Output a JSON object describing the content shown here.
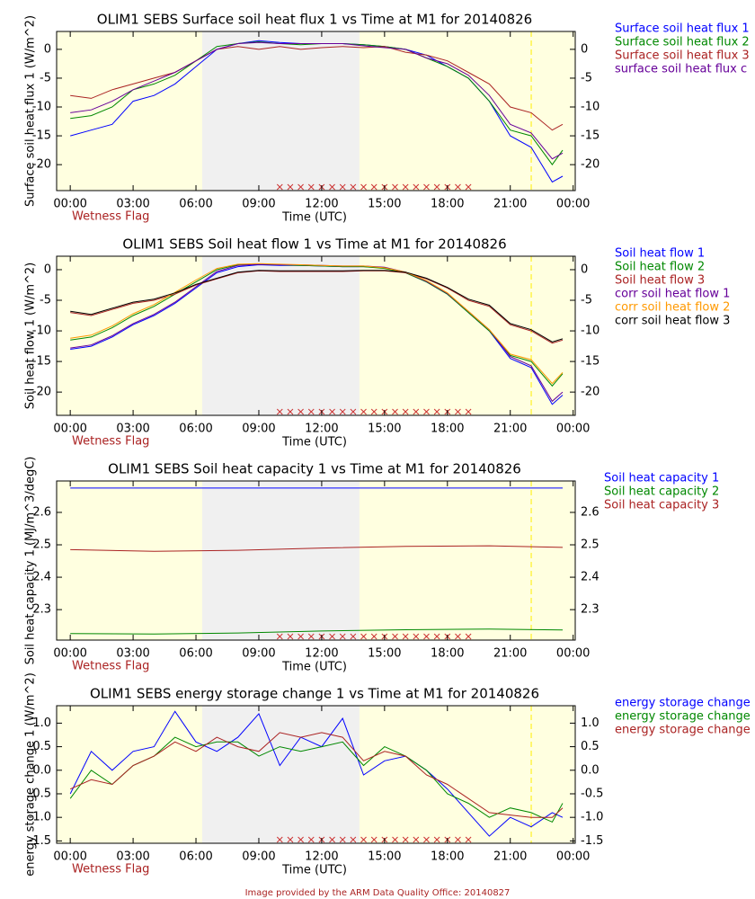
{
  "chart_data": [
    {
      "type": "line",
      "title": "OLIM1 SEBS Surface soil heat flux 1 vs Time at M1 for 20140826",
      "xlabel": "Time (UTC)",
      "ylabel": "Surface soil heat flux 1 (W/m^2)",
      "flag_label": "Wetness Flag",
      "x": [
        0,
        1,
        2,
        3,
        4,
        5,
        6,
        7,
        8,
        9,
        10,
        11,
        12,
        13,
        14,
        15,
        16,
        17,
        18,
        19,
        20,
        21,
        22,
        23,
        23.5
      ],
      "xlim": [
        -0.65,
        24.1
      ],
      "xticks": [
        {
          "value": 0,
          "label": "00:00"
        },
        {
          "value": 3,
          "label": "03:00"
        },
        {
          "value": 6,
          "label": "06:00"
        },
        {
          "value": 9,
          "label": "09:00"
        },
        {
          "value": 12,
          "label": "12:00"
        },
        {
          "value": 15,
          "label": "15:00"
        },
        {
          "value": 18,
          "label": "18:00"
        },
        {
          "value": 21,
          "label": "21:00"
        },
        {
          "value": 24,
          "label": "00:00"
        }
      ],
      "ylim": [
        -24.5,
        3.1
      ],
      "yticks": [
        -20,
        -15,
        -10,
        -5,
        0
      ],
      "series": [
        {
          "name": "Surface soil heat flux 1",
          "color": "#0000ff",
          "values": [
            -15,
            -14,
            -13,
            -9,
            -8,
            -6,
            -3,
            0,
            1,
            1.5,
            1.2,
            1,
            1,
            1,
            0.8,
            0.5,
            0,
            -1,
            -3,
            -5,
            -9,
            -15,
            -17,
            -23,
            -22
          ]
        },
        {
          "name": "Surface soil heat flux 2",
          "color": "#008800",
          "values": [
            -12,
            -11.5,
            -10,
            -7,
            -6,
            -4.5,
            -2,
            0.5,
            1,
            1.3,
            1,
            0.8,
            1,
            1,
            0.8,
            0.5,
            0,
            -1.5,
            -3,
            -5,
            -9,
            -14,
            -15,
            -20,
            -17.5
          ]
        },
        {
          "name": "Surface soil heat flux 3",
          "color": "#aa2222",
          "values": [
            -8,
            -8.5,
            -7,
            -6,
            -5,
            -4,
            -2,
            0,
            0.5,
            0,
            0.5,
            0,
            0.3,
            0.5,
            0.3,
            0.5,
            -0.5,
            -1,
            -2,
            -4,
            -6,
            -10,
            -11,
            -14,
            -13
          ]
        },
        {
          "name": "surface soil heat flux c",
          "color": "#660099",
          "values": [
            -11,
            -10.5,
            -9,
            -7,
            -5.5,
            -4,
            -2,
            0,
            1,
            1.2,
            1,
            1,
            1,
            1,
            0.6,
            0.3,
            0,
            -1.5,
            -2.5,
            -4.5,
            -8,
            -13,
            -14.5,
            -19,
            -18
          ]
        }
      ]
    },
    {
      "type": "line",
      "title": "OLIM1 SEBS Soil heat flow 1 vs Time at M1 for 20140826",
      "xlabel": "Time (UTC)",
      "ylabel": "Soil heat flow 1 (W/m^2)",
      "flag_label": "Wetness Flag",
      "x": [
        0,
        1,
        2,
        3,
        4,
        5,
        6,
        7,
        8,
        9,
        10,
        11,
        12,
        13,
        14,
        15,
        16,
        17,
        18,
        19,
        20,
        21,
        22,
        23,
        23.5
      ],
      "xlim": [
        -0.65,
        24.1
      ],
      "xticks": [
        {
          "value": 0,
          "label": "00:00"
        },
        {
          "value": 3,
          "label": "03:00"
        },
        {
          "value": 6,
          "label": "06:00"
        },
        {
          "value": 9,
          "label": "09:00"
        },
        {
          "value": 12,
          "label": "12:00"
        },
        {
          "value": 15,
          "label": "15:00"
        },
        {
          "value": 18,
          "label": "18:00"
        },
        {
          "value": 21,
          "label": "21:00"
        },
        {
          "value": 24,
          "label": "00:00"
        }
      ],
      "ylim": [
        -23.8,
        2.2
      ],
      "yticks": [
        -20,
        -15,
        -10,
        -5,
        0
      ],
      "series": [
        {
          "name": "Soil heat flow 1",
          "color": "#0000ff",
          "values": [
            -13,
            -12.5,
            -11,
            -9,
            -7.5,
            -5.5,
            -3,
            -0.5,
            0.5,
            0.8,
            0.7,
            0.7,
            0.6,
            0.5,
            0.5,
            0.3,
            -0.5,
            -2,
            -4,
            -7,
            -10,
            -14.5,
            -16,
            -22,
            -20.5
          ]
        },
        {
          "name": "Soil heat flow 2",
          "color": "#008800",
          "values": [
            -11.5,
            -11,
            -9.5,
            -7.5,
            -6,
            -4,
            -2,
            0,
            0.8,
            0.9,
            0.8,
            0.7,
            0.6,
            0.5,
            0.5,
            0.2,
            -0.5,
            -2,
            -4,
            -7,
            -10,
            -14,
            -15,
            -19,
            -17
          ]
        },
        {
          "name": "Soil heat flow 3",
          "color": "#aa2222",
          "values": [
            -7,
            -7.5,
            -6.5,
            -5.5,
            -5,
            -4,
            -2.5,
            -1.5,
            -0.5,
            -0.2,
            -0.3,
            -0.3,
            -0.3,
            -0.3,
            -0.2,
            -0.2,
            -0.5,
            -1.5,
            -3,
            -5,
            -6,
            -9,
            -10,
            -12,
            -11.5
          ]
        },
        {
          "name": "corr soil heat flow 1",
          "color": "#660099",
          "values": [
            -12.8,
            -12.3,
            -10.8,
            -8.8,
            -7.3,
            -5.3,
            -2.8,
            -0.3,
            0.7,
            0.9,
            0.8,
            0.8,
            0.7,
            0.6,
            0.6,
            0.4,
            -0.4,
            -1.9,
            -3.9,
            -6.8,
            -9.8,
            -14.2,
            -15.7,
            -21.5,
            -20
          ]
        },
        {
          "name": "corr soil heat flow 2",
          "color": "#ff9900",
          "values": [
            -11.2,
            -10.7,
            -9.2,
            -7.2,
            -5.7,
            -3.7,
            -1.7,
            0.2,
            0.9,
            1,
            0.9,
            0.8,
            0.7,
            0.6,
            0.6,
            0.3,
            -0.4,
            -1.8,
            -3.8,
            -6.8,
            -9.8,
            -13.8,
            -14.7,
            -18.6,
            -16.8
          ]
        },
        {
          "name": "corr soil heat flow 3",
          "color": "#000000",
          "values": [
            -6.8,
            -7.3,
            -6.3,
            -5.3,
            -4.8,
            -3.8,
            -2.4,
            -1.4,
            -0.4,
            -0.1,
            -0.2,
            -0.2,
            -0.2,
            -0.2,
            -0.1,
            -0.1,
            -0.4,
            -1.4,
            -2.9,
            -4.8,
            -5.8,
            -8.8,
            -9.8,
            -11.8,
            -11.3
          ]
        }
      ]
    },
    {
      "type": "line",
      "title": "OLIM1 SEBS Soil heat capacity 1 vs Time at M1 for 20140826",
      "xlabel": "Time (UTC)",
      "ylabel": "Soil heat capacity 1 (MJ/m^3/degC)",
      "flag_label": "Wetness Flag",
      "x": [
        0,
        4,
        8,
        12,
        16,
        20,
        23.5
      ],
      "xlim": [
        -0.65,
        24.1
      ],
      "xticks": [
        {
          "value": 0,
          "label": "00:00"
        },
        {
          "value": 3,
          "label": "03:00"
        },
        {
          "value": 6,
          "label": "06:00"
        },
        {
          "value": 9,
          "label": "09:00"
        },
        {
          "value": 12,
          "label": "12:00"
        },
        {
          "value": 15,
          "label": "15:00"
        },
        {
          "value": 18,
          "label": "18:00"
        },
        {
          "value": 21,
          "label": "21:00"
        },
        {
          "value": 24,
          "label": "00:00"
        }
      ],
      "ylim": [
        2.206,
        2.697
      ],
      "yticks": [
        2.3,
        2.4,
        2.5,
        2.6
      ],
      "series": [
        {
          "name": "Soil heat capacity 1",
          "color": "#0000ff",
          "values": [
            2.675,
            2.675,
            2.675,
            2.675,
            2.675,
            2.675,
            2.675
          ]
        },
        {
          "name": "Soil heat capacity 2",
          "color": "#008800",
          "values": [
            2.226,
            2.225,
            2.228,
            2.234,
            2.238,
            2.24,
            2.237
          ]
        },
        {
          "name": "Soil heat capacity 3",
          "color": "#aa2222",
          "values": [
            2.485,
            2.48,
            2.483,
            2.49,
            2.495,
            2.497,
            2.492
          ]
        }
      ]
    },
    {
      "type": "line",
      "title": "OLIM1 SEBS energy storage change 1 vs Time at M1 for 20140826",
      "xlabel": "Time (UTC)",
      "ylabel": "energy storage change 1 (W/m^2)",
      "flag_label": "Wetness Flag",
      "x": [
        0,
        1,
        2,
        3,
        4,
        5,
        6,
        7,
        8,
        9,
        10,
        11,
        12,
        13,
        14,
        15,
        16,
        17,
        18,
        19,
        20,
        21,
        22,
        23,
        23.5
      ],
      "xlim": [
        -0.65,
        24.1
      ],
      "xticks": [
        {
          "value": 0,
          "label": "00:00"
        },
        {
          "value": 3,
          "label": "03:00"
        },
        {
          "value": 6,
          "label": "06:00"
        },
        {
          "value": 9,
          "label": "09:00"
        },
        {
          "value": 12,
          "label": "12:00"
        },
        {
          "value": 15,
          "label": "15:00"
        },
        {
          "value": 18,
          "label": "18:00"
        },
        {
          "value": 21,
          "label": "21:00"
        },
        {
          "value": 24,
          "label": "00:00"
        }
      ],
      "ylim": [
        -1.55,
        1.37
      ],
      "yticks": [
        -1.5,
        {
          "value": -1,
          "label": "-1.0"
        },
        -0.5,
        {
          "value": 0,
          "label": "0.0"
        },
        0.5,
        {
          "value": 1,
          "label": "1.0"
        }
      ],
      "series": [
        {
          "name": "energy storage change",
          "color": "#0000ff",
          "values": [
            -0.5,
            0.4,
            0,
            0.4,
            0.5,
            1.25,
            0.6,
            0.4,
            0.7,
            1.2,
            0.1,
            0.7,
            0.5,
            1.1,
            -0.1,
            0.2,
            0.3,
            0,
            -0.4,
            -0.9,
            -1.4,
            -1,
            -1.2,
            -0.9,
            -1
          ]
        },
        {
          "name": "energy storage change",
          "color": "#008800",
          "values": [
            -0.6,
            0,
            -0.3,
            0.1,
            0.3,
            0.7,
            0.5,
            0.6,
            0.6,
            0.3,
            0.5,
            0.4,
            0.5,
            0.6,
            0.1,
            0.5,
            0.3,
            0,
            -0.5,
            -0.7,
            -1,
            -0.8,
            -0.9,
            -1.1,
            -0.7
          ]
        },
        {
          "name": "energy storage change",
          "color": "#aa2222",
          "values": [
            -0.4,
            -0.2,
            -0.3,
            0.1,
            0.3,
            0.6,
            0.4,
            0.7,
            0.5,
            0.4,
            0.8,
            0.7,
            0.8,
            0.7,
            0.2,
            0.4,
            0.3,
            -0.1,
            -0.3,
            -0.6,
            -0.9,
            -0.95,
            -1,
            -1,
            -0.8
          ]
        }
      ]
    }
  ],
  "footer": "Image provided by the ARM Data Quality Office: 20140827"
}
